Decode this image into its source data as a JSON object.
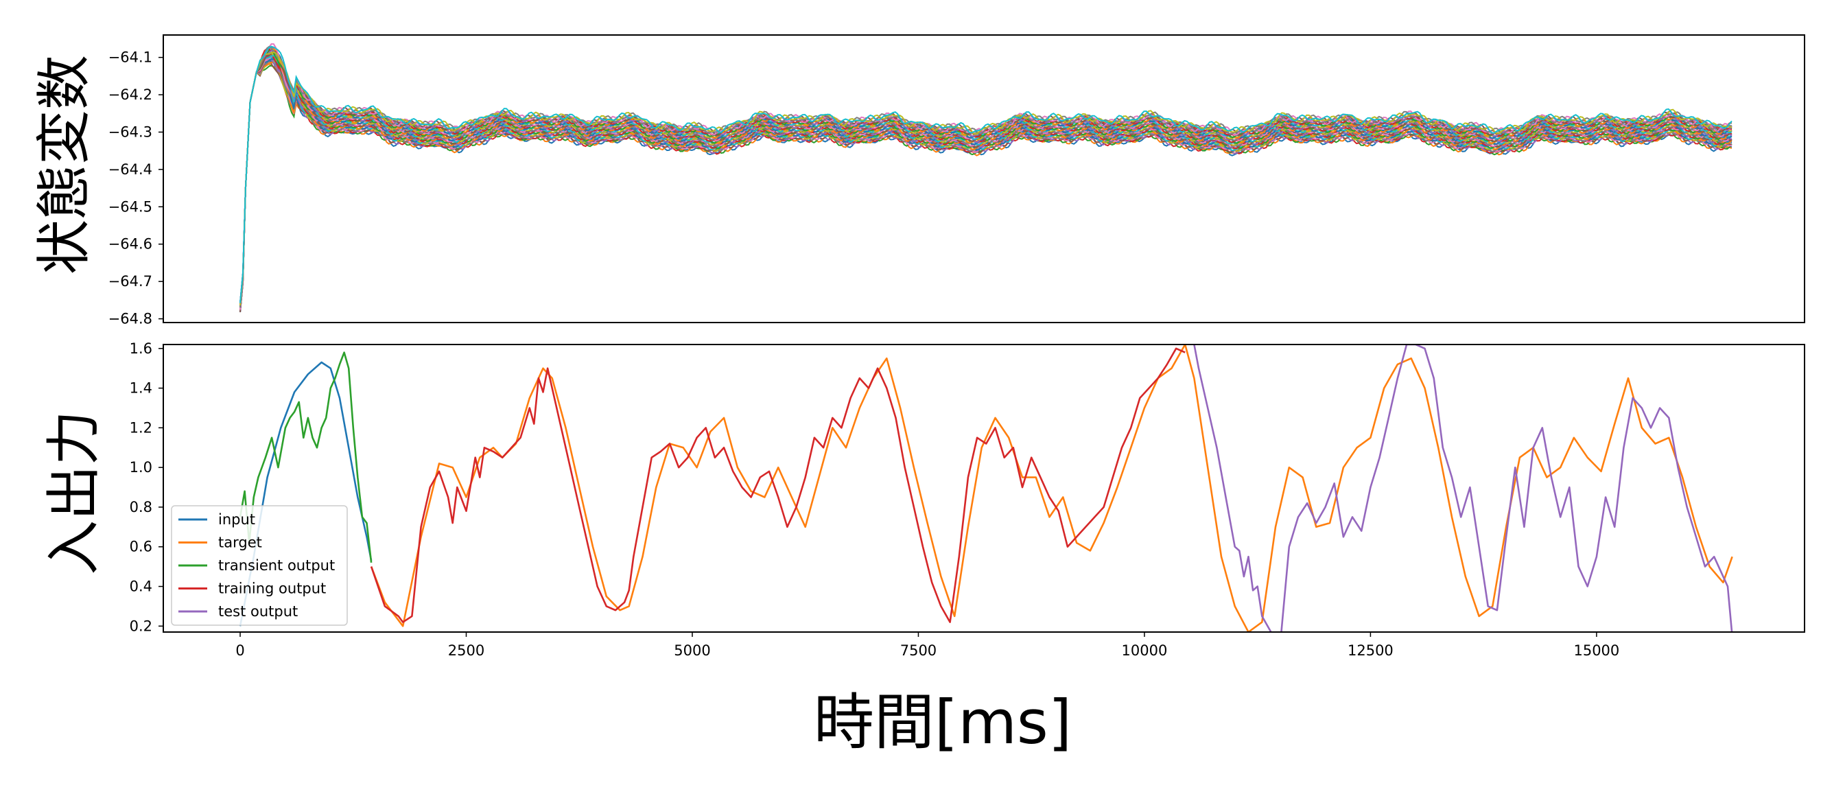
{
  "chart_data": [
    {
      "type": "line",
      "id": "state",
      "ylabel": "状態変数",
      "xlabel": "",
      "xlim": [
        -850,
        17300
      ],
      "ylim": [
        -64.81,
        -64.04
      ],
      "yticks": [
        -64.8,
        -64.7,
        -64.6,
        -64.5,
        -64.4,
        -64.3,
        -64.2,
        -64.1
      ],
      "ytick_labels": [
        "−64.8",
        "−64.7",
        "−64.6",
        "−64.5",
        "−64.4",
        "−64.3",
        "−64.2",
        "−64.1"
      ],
      "xticks_shown": false,
      "series_count": 40,
      "x_range": [
        0,
        16500
      ],
      "start_value": -64.77,
      "peak": {
        "x": 330,
        "y": -64.1
      },
      "settled_level": -64.3,
      "spread": 0.06,
      "legend": false,
      "grid": false
    },
    {
      "type": "line",
      "id": "io",
      "ylabel": "入出力",
      "xlabel": "時間[ms]",
      "xlim": [
        -850,
        17300
      ],
      "ylim": [
        0.17,
        1.62
      ],
      "yticks": [
        0.2,
        0.4,
        0.6,
        0.8,
        1.0,
        1.2,
        1.4,
        1.6
      ],
      "ytick_labels": [
        "0.2",
        "0.4",
        "0.6",
        "0.8",
        "1.0",
        "1.2",
        "1.4",
        "1.6"
      ],
      "xticks": [
        0,
        2500,
        5000,
        7500,
        10000,
        12500,
        15000
      ],
      "xtick_labels": [
        "0",
        "2500",
        "5000",
        "7500",
        "10000",
        "12500",
        "15000"
      ],
      "legend_position": "lower-left",
      "grid": false,
      "series": [
        {
          "name": "input",
          "color": "#1f77b4",
          "x": [
            0,
            150,
            300,
            450,
            600,
            750,
            900,
            1000,
            1100,
            1200,
            1300,
            1400,
            1450
          ],
          "y": [
            0.2,
            0.55,
            0.95,
            1.2,
            1.38,
            1.47,
            1.53,
            1.5,
            1.35,
            1.1,
            0.85,
            0.65,
            0.53
          ]
        },
        {
          "name": "target",
          "color": "#ff7f0e",
          "x": [
            1450,
            1600,
            1800,
            2000,
            2200,
            2350,
            2500,
            2650,
            2800,
            2900,
            3050,
            3200,
            3350,
            3450,
            3600,
            3750,
            3900,
            4050,
            4200,
            4300,
            4450,
            4600,
            4750,
            4900,
            5050,
            5200,
            5350,
            5500,
            5650,
            5800,
            5950,
            6100,
            6250,
            6400,
            6550,
            6700,
            6850,
            7000,
            7150,
            7300,
            7450,
            7600,
            7750,
            7900,
            8050,
            8200,
            8350,
            8500,
            8650,
            8800,
            8950,
            9100,
            9250,
            9400,
            9550,
            9700,
            9850,
            10000,
            10150,
            10300,
            10450,
            10550,
            10700,
            10850,
            11000,
            11150,
            11300,
            11450,
            11600,
            11750,
            11900,
            12050,
            12200,
            12350,
            12500,
            12650,
            12800,
            12950,
            13100,
            13250,
            13400,
            13550,
            13700,
            13850,
            14000,
            14150,
            14300,
            14450,
            14600,
            14750,
            14900,
            15050,
            15200,
            15350,
            15500,
            15650,
            15800,
            15950,
            16100,
            16250,
            16400,
            16500
          ],
          "y": [
            0.5,
            0.32,
            0.2,
            0.65,
            1.02,
            1.0,
            0.85,
            1.05,
            1.1,
            1.05,
            1.12,
            1.35,
            1.5,
            1.45,
            1.2,
            0.9,
            0.6,
            0.35,
            0.28,
            0.3,
            0.55,
            0.9,
            1.12,
            1.1,
            1.0,
            1.18,
            1.25,
            1.0,
            0.88,
            0.85,
            1.0,
            0.85,
            0.7,
            0.95,
            1.2,
            1.1,
            1.3,
            1.45,
            1.55,
            1.3,
            1.0,
            0.72,
            0.45,
            0.25,
            0.7,
            1.1,
            1.25,
            1.15,
            0.95,
            0.95,
            0.75,
            0.85,
            0.62,
            0.58,
            0.72,
            0.9,
            1.1,
            1.3,
            1.45,
            1.5,
            1.62,
            1.45,
            1.0,
            0.55,
            0.3,
            0.17,
            0.22,
            0.7,
            1.0,
            0.95,
            0.7,
            0.72,
            1.0,
            1.1,
            1.15,
            1.4,
            1.52,
            1.55,
            1.4,
            1.1,
            0.75,
            0.45,
            0.25,
            0.3,
            0.7,
            1.05,
            1.1,
            0.95,
            1.0,
            1.15,
            1.05,
            0.98,
            1.22,
            1.45,
            1.2,
            1.12,
            1.15,
            0.95,
            0.7,
            0.5,
            0.42,
            0.55
          ]
        },
        {
          "name": "transient output",
          "color": "#2ca02c",
          "x": [
            0,
            50,
            100,
            150,
            200,
            280,
            350,
            420,
            500,
            550,
            600,
            650,
            700,
            750,
            800,
            850,
            900,
            950,
            1000,
            1050,
            1100,
            1150,
            1200,
            1250,
            1300,
            1350,
            1400,
            1450
          ],
          "y": [
            0.75,
            0.88,
            0.62,
            0.85,
            0.95,
            1.05,
            1.15,
            1.0,
            1.2,
            1.25,
            1.28,
            1.33,
            1.15,
            1.25,
            1.15,
            1.1,
            1.2,
            1.25,
            1.4,
            1.45,
            1.52,
            1.58,
            1.5,
            1.2,
            0.95,
            0.75,
            0.72,
            0.52
          ]
        },
        {
          "name": "training output",
          "color": "#d62728",
          "x": [
            1450,
            1600,
            1750,
            1800,
            1900,
            2000,
            2100,
            2200,
            2300,
            2350,
            2400,
            2500,
            2600,
            2650,
            2700,
            2800,
            2900,
            3000,
            3100,
            3200,
            3250,
            3300,
            3350,
            3400,
            3450,
            3550,
            3650,
            3750,
            3850,
            3950,
            4050,
            4150,
            4250,
            4300,
            4350,
            4450,
            4550,
            4650,
            4750,
            4850,
            4950,
            5050,
            5150,
            5250,
            5350,
            5450,
            5550,
            5650,
            5750,
            5850,
            5950,
            6050,
            6150,
            6250,
            6350,
            6450,
            6550,
            6650,
            6750,
            6850,
            6950,
            7050,
            7150,
            7250,
            7350,
            7450,
            7550,
            7650,
            7750,
            7850,
            7950,
            8050,
            8150,
            8250,
            8350,
            8450,
            8550,
            8650,
            8750,
            8850,
            8950,
            9050,
            9150,
            9250,
            9350,
            9450,
            9550,
            9650,
            9750,
            9850,
            9950,
            10050,
            10150,
            10250,
            10350,
            10450
          ],
          "y": [
            0.5,
            0.3,
            0.25,
            0.22,
            0.25,
            0.7,
            0.9,
            0.98,
            0.85,
            0.72,
            0.9,
            0.78,
            1.05,
            0.95,
            1.1,
            1.08,
            1.05,
            1.1,
            1.15,
            1.3,
            1.22,
            1.45,
            1.38,
            1.5,
            1.4,
            1.2,
            1.0,
            0.8,
            0.6,
            0.4,
            0.3,
            0.28,
            0.32,
            0.38,
            0.55,
            0.8,
            1.05,
            1.08,
            1.12,
            1.0,
            1.05,
            1.15,
            1.2,
            1.05,
            1.1,
            0.98,
            0.9,
            0.85,
            0.95,
            0.98,
            0.85,
            0.7,
            0.8,
            0.95,
            1.15,
            1.1,
            1.25,
            1.2,
            1.35,
            1.45,
            1.4,
            1.5,
            1.4,
            1.25,
            1.0,
            0.8,
            0.6,
            0.42,
            0.3,
            0.22,
            0.55,
            0.95,
            1.15,
            1.12,
            1.2,
            1.05,
            1.1,
            0.9,
            1.05,
            0.95,
            0.85,
            0.78,
            0.6,
            0.65,
            0.7,
            0.75,
            0.8,
            0.95,
            1.1,
            1.2,
            1.35,
            1.4,
            1.45,
            1.52,
            1.6,
            1.58
          ]
        },
        {
          "name": "test output",
          "color": "#9467bd",
          "x": [
            10550,
            10600,
            10700,
            10800,
            10900,
            11000,
            11050,
            11100,
            11150,
            11200,
            11250,
            11300,
            11400,
            11500,
            11550,
            11600,
            11700,
            11800,
            11900,
            12000,
            12100,
            12200,
            12300,
            12400,
            12500,
            12600,
            12700,
            12800,
            12900,
            13000,
            13100,
            13200,
            13300,
            13400,
            13500,
            13600,
            13700,
            13800,
            13900,
            14000,
            14100,
            14200,
            14300,
            14400,
            14500,
            14600,
            14700,
            14800,
            14900,
            15000,
            15100,
            15200,
            15300,
            15400,
            15500,
            15600,
            15700,
            15800,
            15900,
            16000,
            16100,
            16200,
            16300,
            16400,
            16450,
            16500
          ],
          "y": [
            1.62,
            1.5,
            1.3,
            1.1,
            0.85,
            0.6,
            0.58,
            0.45,
            0.55,
            0.38,
            0.4,
            0.25,
            0.17,
            0.1,
            0.35,
            0.6,
            0.75,
            0.82,
            0.72,
            0.8,
            0.92,
            0.65,
            0.75,
            0.68,
            0.9,
            1.05,
            1.25,
            1.45,
            1.62,
            1.62,
            1.6,
            1.45,
            1.1,
            0.95,
            0.75,
            0.9,
            0.6,
            0.3,
            0.28,
            0.65,
            1.0,
            0.7,
            1.1,
            1.2,
            0.95,
            0.75,
            0.9,
            0.5,
            0.4,
            0.55,
            0.85,
            0.7,
            1.1,
            1.35,
            1.3,
            1.2,
            1.3,
            1.25,
            1.0,
            0.8,
            0.65,
            0.5,
            0.55,
            0.45,
            0.4,
            0.15
          ]
        }
      ]
    }
  ]
}
